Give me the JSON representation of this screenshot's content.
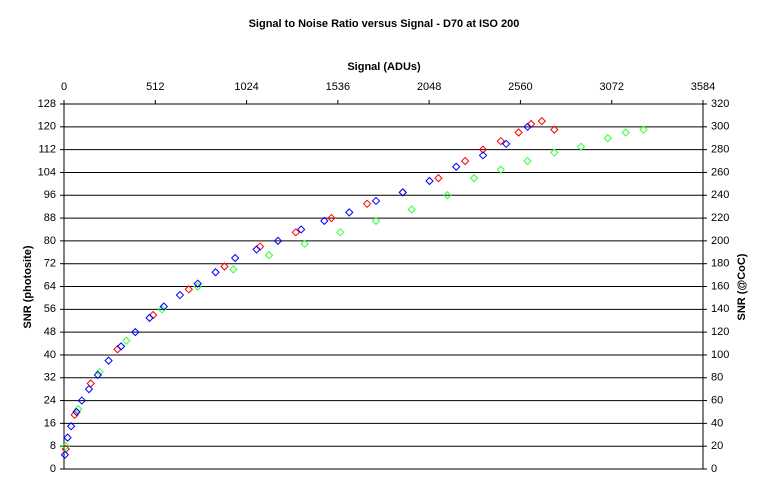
{
  "chart_data": {
    "type": "scatter",
    "title": "Signal to Noise Ratio versus Signal - D70 at ISO 200",
    "x_label": "Signal (ADUs)",
    "y_label": "SNR (photosite)",
    "y2_label": "SNR (@CoC)",
    "xlim": [
      0,
      3584
    ],
    "xticks": [
      0,
      512,
      1024,
      1536,
      2048,
      2560,
      3072,
      3584
    ],
    "ylim": [
      0,
      128
    ],
    "yticks": [
      0,
      8,
      16,
      24,
      32,
      40,
      48,
      56,
      64,
      72,
      80,
      88,
      96,
      104,
      112,
      120,
      128
    ],
    "y2lim": [
      0,
      320
    ],
    "y2ticks": [
      0,
      20,
      40,
      60,
      80,
      100,
      120,
      140,
      160,
      180,
      200,
      220,
      240,
      260,
      280,
      300,
      320
    ],
    "grid": true,
    "series": [
      {
        "color": "#ff0000",
        "x": [
          10,
          60,
          150,
          300,
          500,
          700,
          900,
          1100,
          1300,
          1500,
          1700,
          1900,
          2100,
          2250,
          2350,
          2450,
          2550,
          2620,
          2680,
          2750
        ],
        "values": [
          7,
          19,
          30,
          42,
          54,
          63,
          71,
          78,
          83,
          88,
          93,
          97,
          102,
          108,
          112,
          115,
          118,
          121,
          122,
          119
        ]
      },
      {
        "color": "#33ff33",
        "x": [
          10,
          80,
          200,
          350,
          550,
          750,
          950,
          1150,
          1350,
          1550,
          1750,
          1950,
          2150,
          2300,
          2450,
          2600,
          2750,
          2900,
          3050,
          3150,
          3250
        ],
        "values": [
          8,
          21,
          34,
          45,
          56,
          64,
          70,
          75,
          79,
          83,
          87,
          91,
          96,
          102,
          105,
          108,
          111,
          113,
          116,
          118,
          119
        ]
      },
      {
        "color": "#0000ff",
        "x": [
          5,
          20,
          40,
          70,
          100,
          140,
          190,
          250,
          320,
          400,
          480,
          560,
          650,
          750,
          850,
          960,
          1080,
          1200,
          1330,
          1460,
          1600,
          1750,
          1900,
          2050,
          2200,
          2350,
          2480,
          2600
        ],
        "values": [
          5,
          11,
          15,
          20,
          24,
          28,
          33,
          38,
          43,
          48,
          53,
          57,
          61,
          65,
          69,
          74,
          77,
          80,
          84,
          87,
          90,
          94,
          97,
          101,
          106,
          110,
          114,
          120
        ]
      }
    ]
  }
}
